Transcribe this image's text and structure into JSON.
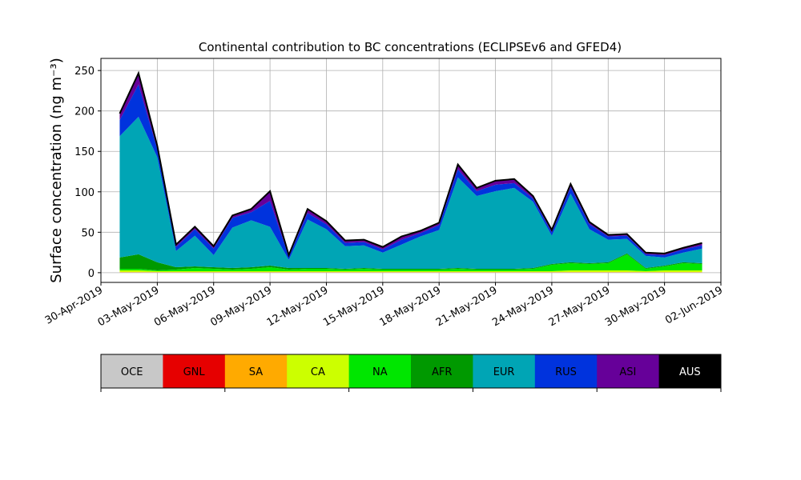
{
  "chart_data": {
    "type": "area",
    "stacked": true,
    "title": "Continental contribution to BC concentrations (ECLIPSEv6 and GFED4)",
    "ylabel": "Surface concentration (ng m⁻³)",
    "xlabel": "",
    "ylim": [
      -12,
      265
    ],
    "xlim": [
      "2019-04-30",
      "2019-06-02"
    ],
    "yticks": [
      0,
      50,
      100,
      150,
      200,
      250
    ],
    "xticks": [
      "2019-04-30",
      "2019-05-03",
      "2019-05-06",
      "2019-05-09",
      "2019-05-12",
      "2019-05-15",
      "2019-05-18",
      "2019-05-21",
      "2019-05-24",
      "2019-05-27",
      "2019-05-30",
      "2019-06-02"
    ],
    "xtick_labels": [
      "30-Apr-2019",
      "03-May-2019",
      "06-May-2019",
      "09-May-2019",
      "12-May-2019",
      "15-May-2019",
      "18-May-2019",
      "21-May-2019",
      "24-May-2019",
      "27-May-2019",
      "30-May-2019",
      "02-Jun-2019"
    ],
    "grid": true,
    "x": [
      "2019-05-01",
      "2019-05-02",
      "2019-05-03",
      "2019-05-04",
      "2019-05-05",
      "2019-05-06",
      "2019-05-07",
      "2019-05-08",
      "2019-05-09",
      "2019-05-10",
      "2019-05-11",
      "2019-05-12",
      "2019-05-13",
      "2019-05-14",
      "2019-05-15",
      "2019-05-16",
      "2019-05-17",
      "2019-05-18",
      "2019-05-19",
      "2019-05-20",
      "2019-05-21",
      "2019-05-22",
      "2019-05-23",
      "2019-05-24",
      "2019-05-25",
      "2019-05-26",
      "2019-05-27",
      "2019-05-28",
      "2019-05-29",
      "2019-05-30",
      "2019-05-31",
      "2019-06-01"
    ],
    "series": [
      {
        "name": "OCE",
        "color": "#c8c8c8",
        "values": [
          0.5,
          0.5,
          0.5,
          0.5,
          0.5,
          0.5,
          0.5,
          0.5,
          0.5,
          0.5,
          0.5,
          0.5,
          0.5,
          0.5,
          0.5,
          0.5,
          0.5,
          0.5,
          0.5,
          0.5,
          0.5,
          0.5,
          0.5,
          0.5,
          0.5,
          0.5,
          0.5,
          0.5,
          0.5,
          0.5,
          0.5,
          0.5
        ]
      },
      {
        "name": "GNL",
        "color": "#e60000",
        "values": [
          0,
          0,
          0,
          0,
          0,
          0,
          0,
          0,
          0,
          0,
          0,
          0,
          0,
          0,
          0,
          0,
          0,
          0,
          0,
          0,
          0,
          0,
          0,
          0,
          0,
          0,
          0,
          0,
          0,
          0,
          0,
          0
        ]
      },
      {
        "name": "SA",
        "color": "#ffaa00",
        "values": [
          0.3,
          0.3,
          0.3,
          0.3,
          0.3,
          0.3,
          0.3,
          0.3,
          0.3,
          0.3,
          0.3,
          0.3,
          0.3,
          0.3,
          0.3,
          0.3,
          0.3,
          0.3,
          0.3,
          0.3,
          0.3,
          0.3,
          0.3,
          0.3,
          0.3,
          0.3,
          0.3,
          0.3,
          0.3,
          0.3,
          0.3,
          0.3
        ]
      },
      {
        "name": "CA",
        "color": "#ccff00",
        "values": [
          2,
          2,
          1,
          1,
          1,
          1,
          1,
          1,
          1,
          1,
          1,
          1,
          1,
          1,
          1,
          1,
          1,
          1,
          1,
          1,
          1,
          1,
          1,
          1,
          2,
          2,
          2,
          2,
          1,
          2,
          2,
          2
        ]
      },
      {
        "name": "NA",
        "color": "#00e600",
        "values": [
          2,
          2,
          1,
          2,
          4,
          3,
          2,
          3,
          5,
          2,
          3,
          3,
          2,
          3,
          2,
          2,
          2,
          2,
          3,
          2,
          2,
          2,
          3,
          8,
          9,
          8,
          9,
          20,
          3,
          5,
          9,
          8
        ]
      },
      {
        "name": "AFR",
        "color": "#009900",
        "values": [
          14,
          18,
          10,
          3,
          2,
          2,
          2,
          2,
          2,
          2,
          1,
          1,
          1,
          1,
          1,
          1,
          1,
          1,
          1,
          1,
          1,
          1,
          1,
          1,
          1,
          1,
          1,
          1,
          1,
          1,
          1,
          1
        ]
      },
      {
        "name": "EUR",
        "color": "#00a5b5",
        "values": [
          150,
          170,
          130,
          20,
          38,
          15,
          50,
          58,
          48,
          10,
          60,
          48,
          28,
          28,
          20,
          30,
          40,
          48,
          112,
          90,
          96,
          100,
          82,
          35,
          85,
          42,
          28,
          18,
          15,
          10,
          12,
          18
        ]
      },
      {
        "name": "RUS",
        "color": "#0033dd",
        "values": [
          20,
          40,
          10,
          5,
          8,
          8,
          12,
          10,
          32,
          4,
          8,
          6,
          4,
          4,
          4,
          6,
          4,
          6,
          10,
          6,
          8,
          6,
          4,
          4,
          8,
          6,
          4,
          4,
          2,
          3,
          4,
          4
        ]
      },
      {
        "name": "ASI",
        "color": "#660099",
        "values": [
          8,
          14,
          4,
          3,
          3,
          3,
          3,
          4,
          12,
          2,
          5,
          4,
          3,
          3,
          3,
          4,
          3,
          3,
          6,
          4,
          5,
          5,
          3,
          3,
          4,
          3,
          2,
          2,
          2,
          2,
          2,
          3
        ]
      },
      {
        "name": "AUS",
        "color": "#000000",
        "values": [
          0,
          0,
          0,
          0,
          0,
          0,
          0,
          0,
          0,
          0,
          0,
          0,
          0,
          0,
          0,
          0,
          0,
          0,
          0,
          0,
          0,
          0,
          0,
          0,
          0,
          0,
          0,
          0,
          0,
          0,
          0,
          0
        ]
      }
    ],
    "colorbar": {
      "labels": [
        "OCE",
        "GNL",
        "SA",
        "CA",
        "NA",
        "AFR",
        "EUR",
        "RUS",
        "ASI",
        "AUS"
      ],
      "colors": [
        "#c8c8c8",
        "#e60000",
        "#ffaa00",
        "#ccff00",
        "#00e600",
        "#009900",
        "#00a5b5",
        "#0033dd",
        "#660099",
        "#000000"
      ],
      "text_colors": [
        "#000000",
        "#000000",
        "#000000",
        "#000000",
        "#000000",
        "#000000",
        "#000000",
        "#000000",
        "#000000",
        "#ffffff"
      ]
    }
  }
}
